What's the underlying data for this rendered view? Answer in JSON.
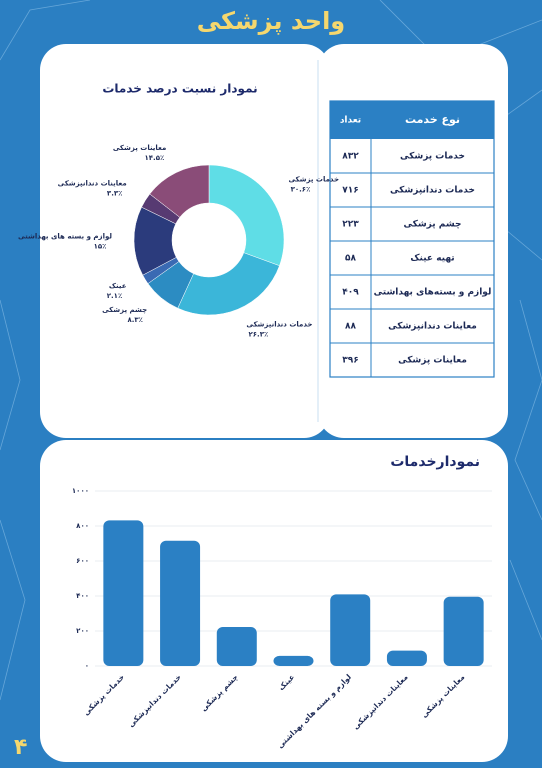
{
  "header": {
    "title": "واحد پزشکی",
    "page_number": "۴"
  },
  "table": {
    "columns": [
      "نوع خدمت",
      "تعداد"
    ],
    "rows": [
      [
        "خدمات پزشکی",
        "۸۳۲"
      ],
      [
        "خدمات دندانپزشکی",
        "۷۱۶"
      ],
      [
        "چشم پزشکی",
        "۲۲۳"
      ],
      [
        "تهیه عینک",
        "۵۸"
      ],
      [
        "لوازم و بسته‌های بهداشتی",
        "۴۰۹"
      ],
      [
        "معاینات دندانپزشکی",
        "۸۸"
      ],
      [
        "معاینات پزشکی",
        "۳۹۶"
      ]
    ]
  },
  "chart_data": [
    {
      "type": "pie",
      "title": "نمودار نسبت درصد خدمات",
      "categories": [
        "خدمات پزشکی",
        "خدمات دندانپزشکی",
        "چشم پزشکی",
        "عینک",
        "لوازم و بسته های بهداشتی",
        "معاینات دندانپزشکی",
        "معاینات پزشکی"
      ],
      "values": [
        30.6,
        26.3,
        8.3,
        2.1,
        15,
        3.3,
        14.5
      ],
      "value_labels": [
        "۳۰.۶٪",
        "۲۶.۳٪",
        "۸.۳٪",
        "۲.۱٪",
        "۱۵٪",
        "۳.۳٪",
        "۱۴.۵٪"
      ],
      "colors": [
        "#5fdde6",
        "#3bb6d9",
        "#2c8cc2",
        "#3a6ab3",
        "#2b3b7c",
        "#573a72",
        "#8a4c78"
      ]
    },
    {
      "type": "bar",
      "title": "نمودارخدمات",
      "categories": [
        "خدمات پزشکی",
        "خدمات دندانپزشکی",
        "چشم پزشکی",
        "عینک",
        "لوازم و بسته های بهداشتی",
        "معاینات دندانپزشکی",
        "معاینات پزشکی"
      ],
      "values": [
        832,
        716,
        223,
        58,
        409,
        88,
        396
      ],
      "color": "#2b80c4",
      "ylim": [
        0,
        1000
      ],
      "yticks": [
        {
          "value": 0,
          "label": "۰"
        },
        {
          "value": 200,
          "label": "۲۰۰"
        },
        {
          "value": 400,
          "label": "۴۰۰"
        },
        {
          "value": 600,
          "label": "۶۰۰"
        },
        {
          "value": 800,
          "label": "۸۰۰"
        },
        {
          "value": 1000,
          "label": "۱۰۰۰"
        }
      ],
      "grid": true
    }
  ]
}
